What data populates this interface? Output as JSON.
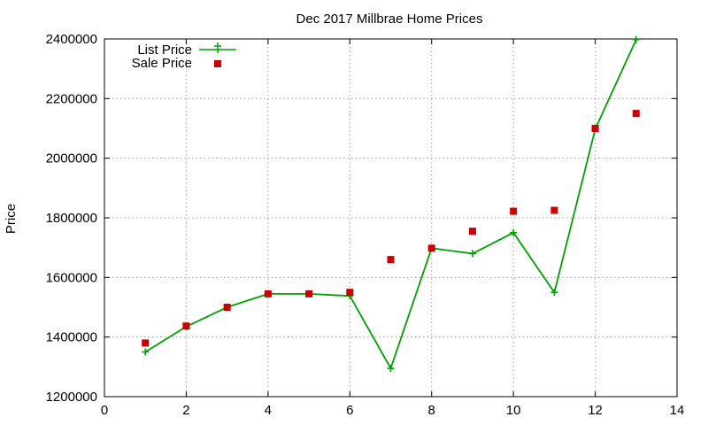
{
  "chart_data": {
    "type": "line",
    "title": "Dec 2017 Millbrae Home Prices",
    "xlabel": "",
    "ylabel": "Price",
    "xlim": [
      0,
      14
    ],
    "ylim": [
      1200000,
      2400000
    ],
    "xticks": [
      0,
      2,
      4,
      6,
      8,
      10,
      12,
      14
    ],
    "yticks": [
      1200000,
      1400000,
      1600000,
      1800000,
      2000000,
      2200000,
      2400000
    ],
    "grid": true,
    "legend_position": "top-left",
    "series": [
      {
        "name": "List Price",
        "style": "line+points",
        "marker": "plus",
        "color": "#00a000",
        "x": [
          1,
          2,
          3,
          4,
          5,
          6,
          7,
          8,
          9,
          10,
          11,
          12,
          13
        ],
        "values": [
          1350000,
          1435000,
          1500000,
          1545000,
          1545000,
          1538000,
          1295000,
          1698000,
          1680000,
          1750000,
          1550000,
          2098000,
          2398000
        ]
      },
      {
        "name": "Sale Price",
        "style": "points",
        "marker": "square",
        "color": "#cc0000",
        "x": [
          1,
          2,
          3,
          4,
          5,
          6,
          7,
          8,
          9,
          10,
          11,
          12,
          13
        ],
        "values": [
          1380000,
          1437000,
          1500000,
          1545000,
          1545000,
          1550000,
          1660000,
          1698000,
          1755000,
          1822000,
          1825000,
          2100000,
          2150000
        ]
      }
    ]
  }
}
